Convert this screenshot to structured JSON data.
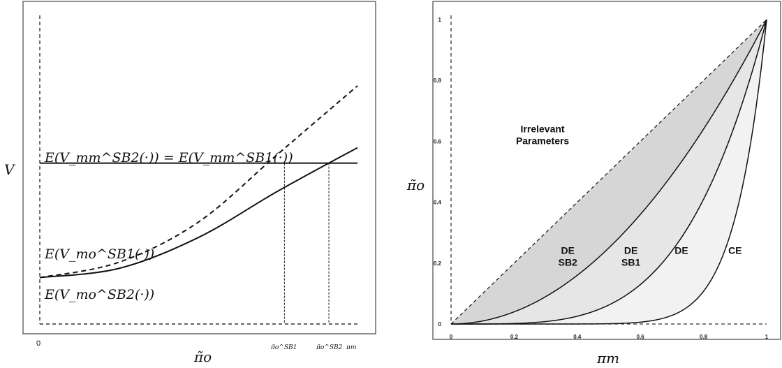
{
  "chart_data": [
    {
      "type": "line",
      "title": "",
      "ylabel": "V",
      "xlabel": "π̃o",
      "x_tick_labels": [
        "0",
        "π̃o^SB1",
        "π̃o^SB2",
        "πm"
      ],
      "annotations": {
        "horizontal_line": "E(V_mm^SB2(·)) = E(V_mm^SB1(·))",
        "upper_curve_label": "E(V_mo^SB1(·))",
        "lower_curve_label": "E(V_mo^SB2(·))"
      },
      "series": [
        {
          "name": "E(V_mm^SB2(·)) = E(V_mm^SB1(·))",
          "style": "solid",
          "x": [
            0,
            1
          ],
          "y": [
            0.52,
            0.52
          ]
        },
        {
          "name": "E(V_mo^SB1(·))",
          "style": "dashed",
          "x": [
            0,
            0.25,
            0.5,
            0.75,
            1.0
          ],
          "y": [
            0.15,
            0.2,
            0.33,
            0.55,
            0.77
          ]
        },
        {
          "name": "E(V_mo^SB2(·))",
          "style": "solid",
          "x": [
            0,
            0.25,
            0.5,
            0.75,
            1.0
          ],
          "y": [
            0.15,
            0.18,
            0.28,
            0.43,
            0.57
          ]
        }
      ],
      "vertical_markers": [
        {
          "label": "π̃o^SB1",
          "x": 0.77
        },
        {
          "label": "π̃o^SB2",
          "x": 0.91
        }
      ]
    },
    {
      "type": "area",
      "xlabel": "πm",
      "ylabel": "π̃o",
      "xlim": [
        0,
        1
      ],
      "ylim": [
        0,
        1
      ],
      "x_ticks": [
        "0",
        "0.2",
        "0.4",
        "0.6",
        "0.8",
        "1"
      ],
      "y_ticks": [
        "0",
        "0.2",
        "0.4",
        "0.6",
        "0.8",
        "1"
      ],
      "boundaries": [
        {
          "name": "diagonal",
          "style": "dashed",
          "exponent": 1
        },
        {
          "name": "boundary-1",
          "style": "solid",
          "exponent": 2
        },
        {
          "name": "boundary-2",
          "style": "solid",
          "exponent": 4
        },
        {
          "name": "boundary-3",
          "style": "solid",
          "exponent": 10
        }
      ],
      "regions": [
        {
          "label": [
            "Irrelevant",
            "Parameters"
          ],
          "fill": "#ffffff"
        },
        {
          "label": [
            "DE",
            "SB2"
          ],
          "fill": "#d6d6d6"
        },
        {
          "label": [
            "DE",
            "SB1"
          ],
          "fill": "#e6e6e6"
        },
        {
          "label": [
            "DE"
          ],
          "fill": "#f2f2f2"
        },
        {
          "label": [
            "CE"
          ],
          "fill": "#ffffff"
        }
      ],
      "grid": false
    }
  ]
}
